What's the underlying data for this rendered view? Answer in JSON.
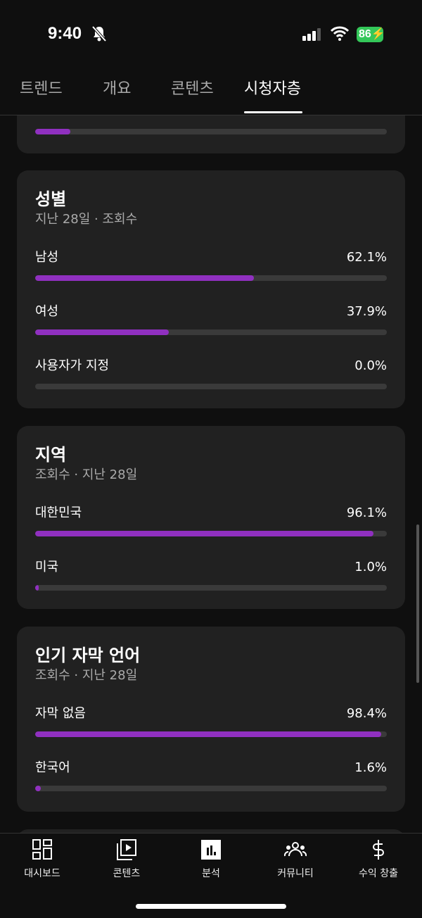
{
  "status": {
    "time": "9:40",
    "battery": "86"
  },
  "tabs": [
    {
      "label": "트렌드"
    },
    {
      "label": "개요"
    },
    {
      "label": "콘텐츠"
    },
    {
      "label": "시청자층",
      "active": true
    }
  ],
  "partial_card": {
    "fill_percent": 10
  },
  "gender": {
    "title": "성별",
    "subtitle": "지난 28일 · 조회수",
    "rows": [
      {
        "label": "남성",
        "value": "62.1%",
        "pct": 62.1
      },
      {
        "label": "여성",
        "value": "37.9%",
        "pct": 37.9
      },
      {
        "label": "사용자가 지정",
        "value": "0.0%",
        "pct": 0
      }
    ]
  },
  "region": {
    "title": "지역",
    "subtitle": "조회수 · 지난 28일",
    "rows": [
      {
        "label": "대한민국",
        "value": "96.1%",
        "pct": 96.1
      },
      {
        "label": "미국",
        "value": "1.0%",
        "pct": 1.0
      }
    ]
  },
  "subtitles": {
    "title": "인기 자막 언어",
    "subtitle": "조회수 · 지난 28일",
    "rows": [
      {
        "label": "자막 없음",
        "value": "98.4%",
        "pct": 98.4
      },
      {
        "label": "한국어",
        "value": "1.6%",
        "pct": 1.6
      }
    ]
  },
  "nav": [
    {
      "label": "대시보드",
      "icon": "dashboard-icon"
    },
    {
      "label": "콘텐츠",
      "icon": "content-icon"
    },
    {
      "label": "분석",
      "icon": "analytics-icon",
      "active": true
    },
    {
      "label": "커뮤니티",
      "icon": "community-icon"
    },
    {
      "label": "수익 창출",
      "icon": "dollar-icon"
    }
  ],
  "colors": {
    "accent": "#9030c0",
    "card": "#212121",
    "background": "#0f0f0f"
  }
}
